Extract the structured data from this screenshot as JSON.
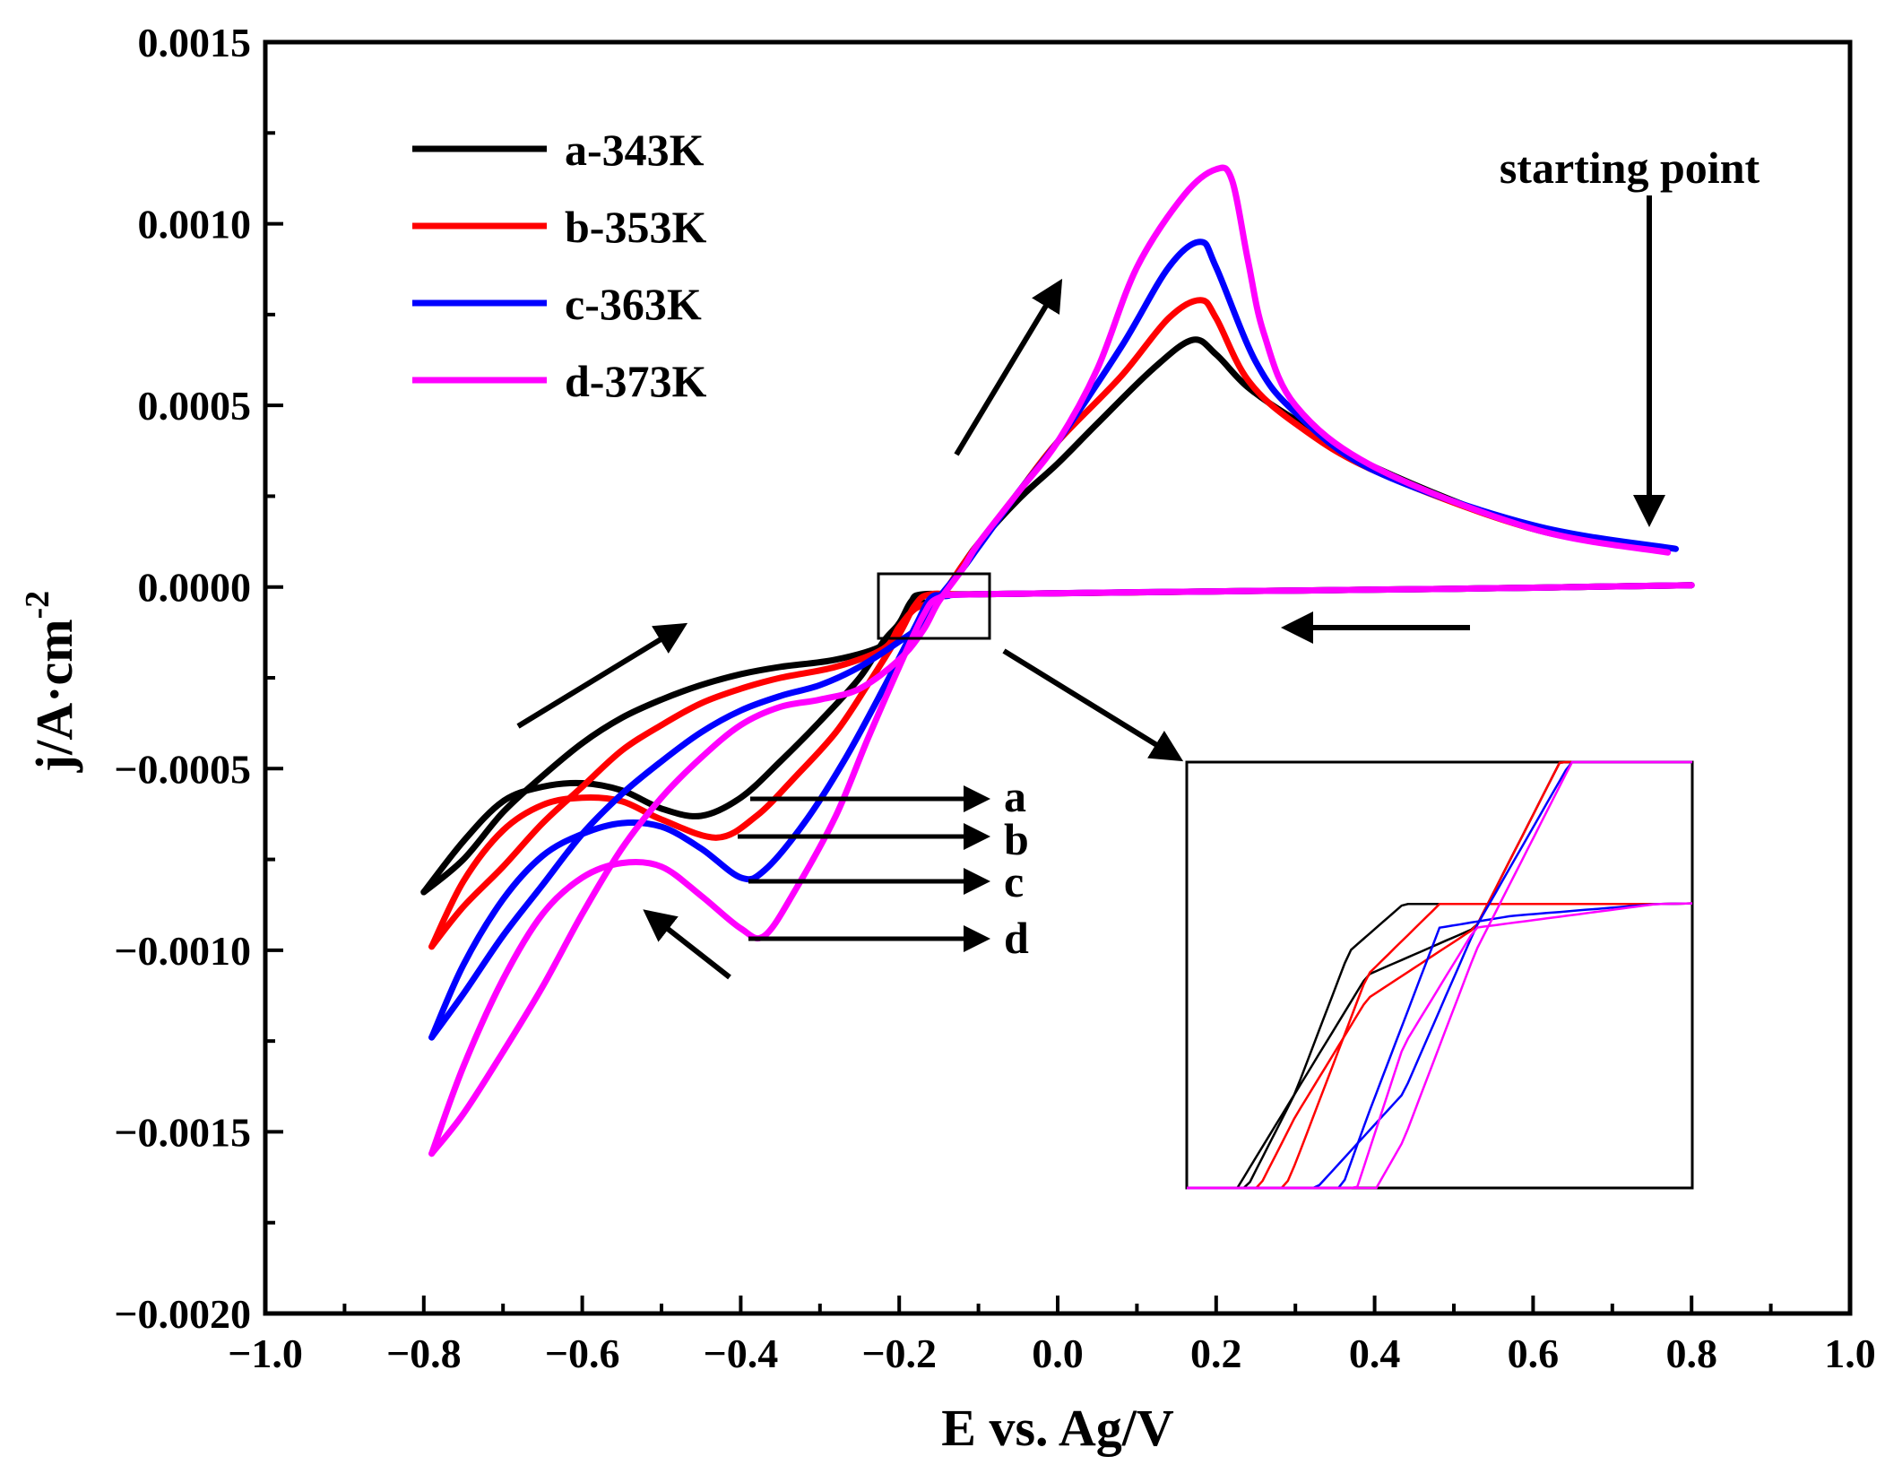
{
  "chart_data": {
    "type": "line",
    "title": "",
    "xlabel": "E vs. Ag/V",
    "ylabel": "j/A·cm",
    "ylabel_superscript": "-2",
    "xlim": [
      -1.0,
      1.0
    ],
    "ylim": [
      -0.002,
      0.0015
    ],
    "xticks": [
      "−1.0",
      "−0.8",
      "−0.6",
      "−0.4",
      "−0.2",
      "0.0",
      "0.2",
      "0.4",
      "0.6",
      "0.8",
      "1.0"
    ],
    "yticks": [
      "0.0015",
      "0.0010",
      "0.0005",
      "0.0000",
      "−0.0005",
      "−0.0010",
      "−0.0015",
      "−0.0020"
    ],
    "legend_position": "top-left",
    "series": [
      {
        "name": "a-343K",
        "color": "#000000",
        "points": [
          [
            0.76,
            0.000105
          ],
          [
            0.6,
            0.00016
          ],
          [
            0.4,
            0.00033
          ],
          [
            0.3,
            0.00046
          ],
          [
            0.24,
            0.00055
          ],
          [
            0.2,
            0.00064
          ],
          [
            0.17,
            0.00068
          ],
          [
            0.12,
            0.0006
          ],
          [
            0.05,
            0.00045
          ],
          [
            0.0,
            0.00034
          ],
          [
            -0.05,
            0.00024
          ],
          [
            -0.1,
            0.00012
          ],
          [
            -0.12,
            6e-05
          ],
          [
            -0.15,
            -3e-05
          ],
          [
            -0.18,
            -5e-05
          ],
          [
            -0.2,
            -0.0001
          ],
          [
            -0.22,
            -0.00016
          ],
          [
            -0.28,
            -0.0002
          ],
          [
            -0.35,
            -0.00022
          ],
          [
            -0.4,
            -0.00024
          ],
          [
            -0.45,
            -0.00027
          ],
          [
            -0.5,
            -0.00031
          ],
          [
            -0.55,
            -0.00036
          ],
          [
            -0.6,
            -0.00043
          ],
          [
            -0.65,
            -0.00052
          ],
          [
            -0.7,
            -0.00062
          ],
          [
            -0.75,
            -0.00075
          ],
          [
            -0.8,
            -0.00084
          ]
        ],
        "reverse_points": [
          [
            -0.8,
            -0.00084
          ],
          [
            -0.75,
            -0.0007
          ],
          [
            -0.7,
            -0.00059
          ],
          [
            -0.65,
            -0.00055
          ],
          [
            -0.6,
            -0.00054
          ],
          [
            -0.55,
            -0.00056
          ],
          [
            -0.5,
            -0.00061
          ],
          [
            -0.45,
            -0.00063
          ],
          [
            -0.4,
            -0.00058
          ],
          [
            -0.35,
            -0.00048
          ],
          [
            -0.3,
            -0.00037
          ],
          [
            -0.25,
            -0.00025
          ],
          [
            -0.22,
            -0.00015
          ],
          [
            -0.2,
            -0.0001
          ],
          [
            -0.185,
            -4e-05
          ],
          [
            -0.17,
            -2e-05
          ],
          [
            -0.1,
            -2e-05
          ],
          [
            0.2,
            -1.2e-05
          ],
          [
            0.5,
            -5e-06
          ],
          [
            0.8,
            5e-06
          ]
        ],
        "cathodic_peak": {
          "E": -0.45,
          "j": -0.00063
        },
        "anodic_peak": {
          "E": 0.17,
          "j": 0.00068
        }
      },
      {
        "name": "b-353K",
        "color": "#ff0000",
        "points": [
          [
            0.77,
            0.0001
          ],
          [
            0.6,
            0.00016
          ],
          [
            0.4,
            0.00032
          ],
          [
            0.3,
            0.00045
          ],
          [
            0.24,
            0.00057
          ],
          [
            0.2,
            0.00074
          ],
          [
            0.18,
            0.00079
          ],
          [
            0.14,
            0.00074
          ],
          [
            0.08,
            0.00058
          ],
          [
            0.0,
            0.0004
          ],
          [
            -0.05,
            0.00026
          ],
          [
            -0.1,
            0.00012
          ],
          [
            -0.12,
            6e-05
          ],
          [
            -0.15,
            -3e-05
          ],
          [
            -0.18,
            -6e-05
          ],
          [
            -0.2,
            -0.00011
          ],
          [
            -0.22,
            -0.00017
          ],
          [
            -0.28,
            -0.00022
          ],
          [
            -0.35,
            -0.00025
          ],
          [
            -0.4,
            -0.00028
          ],
          [
            -0.45,
            -0.00032
          ],
          [
            -0.5,
            -0.00038
          ],
          [
            -0.55,
            -0.00045
          ],
          [
            -0.6,
            -0.00055
          ],
          [
            -0.65,
            -0.00065
          ],
          [
            -0.7,
            -0.00077
          ],
          [
            -0.75,
            -0.00088
          ],
          [
            -0.79,
            -0.00099
          ]
        ],
        "reverse_points": [
          [
            -0.79,
            -0.00099
          ],
          [
            -0.75,
            -0.00081
          ],
          [
            -0.7,
            -0.00067
          ],
          [
            -0.65,
            -0.0006
          ],
          [
            -0.6,
            -0.00058
          ],
          [
            -0.55,
            -0.00059
          ],
          [
            -0.5,
            -0.00064
          ],
          [
            -0.43,
            -0.00069
          ],
          [
            -0.38,
            -0.00063
          ],
          [
            -0.33,
            -0.00052
          ],
          [
            -0.28,
            -0.0004
          ],
          [
            -0.24,
            -0.00027
          ],
          [
            -0.2,
            -0.00013
          ],
          [
            -0.18,
            -5e-05
          ],
          [
            -0.16,
            -2e-05
          ],
          [
            -0.1,
            -2e-05
          ],
          [
            0.2,
            -1.2e-05
          ],
          [
            0.5,
            -5e-06
          ],
          [
            0.8,
            5e-06
          ]
        ],
        "cathodic_peak": {
          "E": -0.43,
          "j": -0.00069
        },
        "anodic_peak": {
          "E": 0.18,
          "j": 0.00079
        }
      },
      {
        "name": "c-363K",
        "color": "#0000ff",
        "points": [
          [
            0.78,
            0.000105
          ],
          [
            0.6,
            0.00017
          ],
          [
            0.4,
            0.00032
          ],
          [
            0.3,
            0.00048
          ],
          [
            0.25,
            0.00062
          ],
          [
            0.2,
            0.00088
          ],
          [
            0.18,
            0.00095
          ],
          [
            0.14,
            0.00088
          ],
          [
            0.08,
            0.00066
          ],
          [
            0.0,
            0.0004
          ],
          [
            -0.05,
            0.00026
          ],
          [
            -0.1,
            0.00011
          ],
          [
            -0.12,
            5e-05
          ],
          [
            -0.15,
            -3e-05
          ],
          [
            -0.17,
            -0.0001
          ],
          [
            -0.2,
            -0.00015
          ],
          [
            -0.25,
            -0.00022
          ],
          [
            -0.3,
            -0.00027
          ],
          [
            -0.35,
            -0.0003
          ],
          [
            -0.4,
            -0.00034
          ],
          [
            -0.45,
            -0.0004
          ],
          [
            -0.5,
            -0.00048
          ],
          [
            -0.55,
            -0.00057
          ],
          [
            -0.6,
            -0.00068
          ],
          [
            -0.65,
            -0.00082
          ],
          [
            -0.7,
            -0.00096
          ],
          [
            -0.75,
            -0.00112
          ],
          [
            -0.79,
            -0.00124
          ]
        ],
        "reverse_points": [
          [
            -0.79,
            -0.00124
          ],
          [
            -0.75,
            -0.00104
          ],
          [
            -0.7,
            -0.00086
          ],
          [
            -0.65,
            -0.00074
          ],
          [
            -0.6,
            -0.00068
          ],
          [
            -0.55,
            -0.00065
          ],
          [
            -0.5,
            -0.00066
          ],
          [
            -0.45,
            -0.00072
          ],
          [
            -0.4,
            -0.0008
          ],
          [
            -0.37,
            -0.00078
          ],
          [
            -0.32,
            -0.00065
          ],
          [
            -0.27,
            -0.00048
          ],
          [
            -0.22,
            -0.00028
          ],
          [
            -0.18,
            -0.00011
          ],
          [
            -0.16,
            -3e-05
          ],
          [
            -0.14,
            -2.5e-05
          ],
          [
            -0.1,
            -2e-05
          ],
          [
            0.2,
            -1.2e-05
          ],
          [
            0.5,
            -5e-06
          ],
          [
            0.8,
            5e-06
          ]
        ],
        "cathodic_peak": {
          "E": -0.4,
          "j": -0.0008
        },
        "anodic_peak": {
          "E": 0.18,
          "j": 0.00095
        }
      },
      {
        "name": "d-373K",
        "color": "#ff00ff",
        "points": [
          [
            0.77,
            9.5e-05
          ],
          [
            0.6,
            0.00016
          ],
          [
            0.4,
            0.00033
          ],
          [
            0.3,
            0.0005
          ],
          [
            0.26,
            0.0007
          ],
          [
            0.24,
            0.0009
          ],
          [
            0.22,
            0.00112
          ],
          [
            0.2,
            0.00115
          ],
          [
            0.16,
            0.00108
          ],
          [
            0.1,
            0.00088
          ],
          [
            0.05,
            0.0006
          ],
          [
            0.0,
            0.0004
          ],
          [
            -0.05,
            0.00026
          ],
          [
            -0.1,
            0.00012
          ],
          [
            -0.12,
            5e-05
          ],
          [
            -0.15,
            -4e-05
          ],
          [
            -0.17,
            -0.00012
          ],
          [
            -0.2,
            -0.0002
          ],
          [
            -0.25,
            -0.00028
          ],
          [
            -0.3,
            -0.00031
          ],
          [
            -0.35,
            -0.00033
          ],
          [
            -0.4,
            -0.00038
          ],
          [
            -0.45,
            -0.00047
          ],
          [
            -0.5,
            -0.00058
          ],
          [
            -0.55,
            -0.00072
          ],
          [
            -0.6,
            -0.0009
          ],
          [
            -0.65,
            -0.0011
          ],
          [
            -0.7,
            -0.00128
          ],
          [
            -0.75,
            -0.00145
          ],
          [
            -0.79,
            -0.00156
          ]
        ],
        "reverse_points": [
          [
            -0.79,
            -0.00156
          ],
          [
            -0.75,
            -0.00132
          ],
          [
            -0.7,
            -0.00108
          ],
          [
            -0.65,
            -0.0009
          ],
          [
            -0.6,
            -0.0008
          ],
          [
            -0.55,
            -0.00076
          ],
          [
            -0.5,
            -0.00077
          ],
          [
            -0.45,
            -0.00085
          ],
          [
            -0.4,
            -0.00094
          ],
          [
            -0.37,
            -0.00096
          ],
          [
            -0.33,
            -0.00083
          ],
          [
            -0.28,
            -0.00063
          ],
          [
            -0.24,
            -0.00042
          ],
          [
            -0.2,
            -0.00022
          ],
          [
            -0.17,
            -8e-05
          ],
          [
            -0.15,
            -3e-05
          ],
          [
            -0.1,
            -2e-05
          ],
          [
            0.2,
            -1.2e-05
          ],
          [
            0.5,
            -5e-06
          ],
          [
            0.8,
            5e-06
          ]
        ],
        "cathodic_peak": {
          "E": -0.37,
          "j": -0.00096
        },
        "anodic_peak": {
          "E": 0.21,
          "j": 0.00115
        }
      }
    ],
    "annotations": {
      "starting_point": "starting point",
      "peak_labels": [
        "a",
        "b",
        "c",
        "d"
      ]
    },
    "inset": {
      "description_source_box_E": [
        -0.23,
        -0.09
      ],
      "description_source_box_j": [
        -0.00014,
        4e-05
      ]
    }
  }
}
